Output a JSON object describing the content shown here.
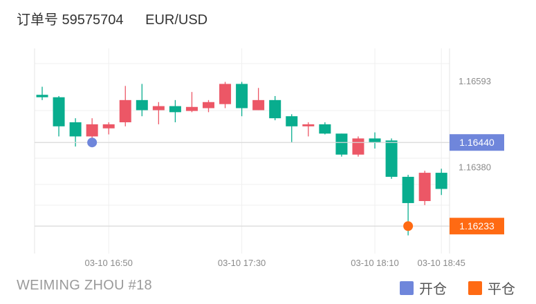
{
  "header": {
    "order_label": "订单号 59575704",
    "symbol": "EUR/USD"
  },
  "footer": {
    "author": "WEIMING ZHOU #18"
  },
  "legend": [
    {
      "label": "开仓",
      "color": "#6f86db"
    },
    {
      "label": "平仓",
      "color": "#ff6a13"
    }
  ],
  "colors": {
    "up": "#ec5766",
    "down": "#08ad8e",
    "open_marker": "#6f86db",
    "close_marker": "#ff6a13"
  },
  "chart_data": {
    "type": "candlestick",
    "x_ticks": [
      {
        "label": "03-10 16:50",
        "index": 4
      },
      {
        "label": "03-10 17:30",
        "index": 12
      },
      {
        "label": "03-10 18:10",
        "index": 20
      },
      {
        "label": "03-10 18:45",
        "index": 24
      }
    ],
    "y_ticks": [
      1.16593,
      1.1638
    ],
    "ylim": [
      1.16165,
      1.16673
    ],
    "price_tags": [
      {
        "label": "1.16440",
        "value": 1.1644,
        "kind": "open"
      },
      {
        "label": "1.16233",
        "value": 1.16233,
        "kind": "close"
      }
    ],
    "markers": [
      {
        "kind": "open",
        "index": 3,
        "value": 1.1644
      },
      {
        "kind": "close",
        "index": 22,
        "value": 1.16233
      }
    ],
    "candles": [
      {
        "o": 1.16558,
        "c": 1.16552,
        "h": 1.16578,
        "l": 1.16545
      },
      {
        "o": 1.16552,
        "c": 1.1648,
        "h": 1.16555,
        "l": 1.16455
      },
      {
        "o": 1.1649,
        "c": 1.16455,
        "h": 1.165,
        "l": 1.1643
      },
      {
        "o": 1.16455,
        "c": 1.16485,
        "h": 1.165,
        "l": 1.1644
      },
      {
        "o": 1.16475,
        "c": 1.16485,
        "h": 1.1649,
        "l": 1.1646
      },
      {
        "o": 1.1649,
        "c": 1.16545,
        "h": 1.1658,
        "l": 1.1648
      },
      {
        "o": 1.16545,
        "c": 1.1652,
        "h": 1.16585,
        "l": 1.16505
      },
      {
        "o": 1.1652,
        "c": 1.1653,
        "h": 1.1654,
        "l": 1.16485
      },
      {
        "o": 1.1653,
        "c": 1.16515,
        "h": 1.16545,
        "l": 1.1649
      },
      {
        "o": 1.16518,
        "c": 1.16528,
        "h": 1.16565,
        "l": 1.16515
      },
      {
        "o": 1.16525,
        "c": 1.1654,
        "h": 1.16545,
        "l": 1.16515
      },
      {
        "o": 1.16535,
        "c": 1.16585,
        "h": 1.1659,
        "l": 1.16525
      },
      {
        "o": 1.16585,
        "c": 1.16525,
        "h": 1.1659,
        "l": 1.16505
      },
      {
        "o": 1.1652,
        "c": 1.16545,
        "h": 1.16575,
        "l": 1.1652
      },
      {
        "o": 1.16545,
        "c": 1.165,
        "h": 1.16555,
        "l": 1.16495
      },
      {
        "o": 1.16505,
        "c": 1.1648,
        "h": 1.1651,
        "l": 1.1644
      },
      {
        "o": 1.1648,
        "c": 1.16485,
        "h": 1.1649,
        "l": 1.16455
      },
      {
        "o": 1.16485,
        "c": 1.16462,
        "h": 1.1649,
        "l": 1.1646
      },
      {
        "o": 1.16462,
        "c": 1.1641,
        "h": 1.16462,
        "l": 1.16405
      },
      {
        "o": 1.1641,
        "c": 1.1645,
        "h": 1.16455,
        "l": 1.16405
      },
      {
        "o": 1.1645,
        "c": 1.1644,
        "h": 1.16465,
        "l": 1.16425
      },
      {
        "o": 1.16445,
        "c": 1.16355,
        "h": 1.1645,
        "l": 1.1635
      },
      {
        "o": 1.16355,
        "c": 1.1629,
        "h": 1.1636,
        "l": 1.1621
      },
      {
        "o": 1.16295,
        "c": 1.16365,
        "h": 1.1637,
        "l": 1.16285
      },
      {
        "o": 1.16365,
        "c": 1.16325,
        "h": 1.16375,
        "l": 1.1631
      }
    ]
  }
}
